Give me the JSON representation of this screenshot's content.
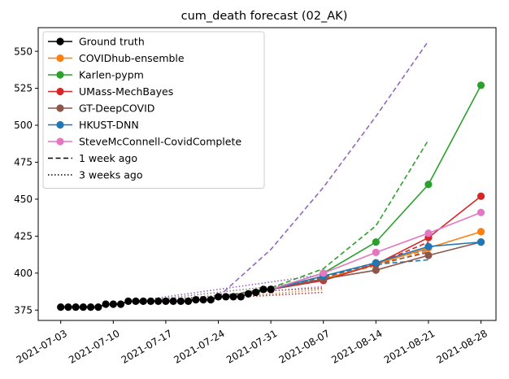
{
  "chart_data": {
    "type": "line",
    "title": "cum_death forecast (02_AK)",
    "xlabel": "",
    "ylabel": "",
    "xlim": [
      "2021-06-30",
      "2021-08-30"
    ],
    "ylim": [
      368,
      566
    ],
    "x_ticks": [
      "2021-07-03",
      "2021-07-10",
      "2021-07-17",
      "2021-07-24",
      "2021-07-31",
      "2021-08-07",
      "2021-08-14",
      "2021-08-21",
      "2021-08-28"
    ],
    "y_ticks": [
      375,
      400,
      425,
      450,
      475,
      500,
      525,
      550
    ],
    "grid": false,
    "legend_position": "top-left",
    "legend": [
      {
        "label": "Ground truth",
        "color": "#000000",
        "style": "solid",
        "marker": true
      },
      {
        "label": "COVIDhub-ensemble",
        "color": "#ff7f0e",
        "style": "solid",
        "marker": true
      },
      {
        "label": "Karlen-pypm",
        "color": "#2ca02c",
        "style": "solid",
        "marker": true
      },
      {
        "label": "UMass-MechBayes",
        "color": "#d62728",
        "style": "solid",
        "marker": true
      },
      {
        "label": "GT-DeepCOVID",
        "color": "#8c564b",
        "style": "solid",
        "marker": true
      },
      {
        "label": "HKUST-DNN",
        "color": "#1f77b4",
        "style": "solid",
        "marker": true
      },
      {
        "label": "SteveMcConnell-CovidComplete",
        "color": "#e377c2",
        "style": "solid",
        "marker": true
      },
      {
        "label": "1 week ago",
        "color": "#000000",
        "style": "dashed",
        "marker": false
      },
      {
        "label": "3 weeks ago",
        "color": "#000000",
        "style": "dotted",
        "marker": false
      }
    ],
    "series": [
      {
        "name": "Ground truth",
        "color": "#000000",
        "style": "solid",
        "marker": true,
        "x": [
          "2021-07-03",
          "2021-07-04",
          "2021-07-05",
          "2021-07-06",
          "2021-07-07",
          "2021-07-08",
          "2021-07-09",
          "2021-07-10",
          "2021-07-11",
          "2021-07-12",
          "2021-07-13",
          "2021-07-14",
          "2021-07-15",
          "2021-07-16",
          "2021-07-17",
          "2021-07-18",
          "2021-07-19",
          "2021-07-20",
          "2021-07-21",
          "2021-07-22",
          "2021-07-23",
          "2021-07-24",
          "2021-07-25",
          "2021-07-26",
          "2021-07-27",
          "2021-07-28",
          "2021-07-29",
          "2021-07-30",
          "2021-07-31"
        ],
        "y": [
          377,
          377,
          377,
          377,
          377,
          377,
          379,
          379,
          379,
          381,
          381,
          381,
          381,
          381,
          381,
          381,
          381,
          381,
          382,
          382,
          382,
          384,
          384,
          384,
          384,
          386,
          387,
          389,
          389
        ]
      },
      {
        "name": "COVIDhub-ensemble",
        "color": "#ff7f0e",
        "style": "solid",
        "marker": true,
        "x": [
          "2021-07-31",
          "2021-08-07",
          "2021-08-14",
          "2021-08-21",
          "2021-08-28"
        ],
        "y": [
          389,
          396,
          406,
          417,
          428
        ]
      },
      {
        "name": "Karlen-pypm",
        "color": "#2ca02c",
        "style": "solid",
        "marker": true,
        "x": [
          "2021-07-31",
          "2021-08-07",
          "2021-08-14",
          "2021-08-21",
          "2021-08-28"
        ],
        "y": [
          389,
          400,
          421,
          460,
          527
        ]
      },
      {
        "name": "UMass-MechBayes",
        "color": "#d62728",
        "style": "solid",
        "marker": true,
        "x": [
          "2021-07-31",
          "2021-08-07",
          "2021-08-14",
          "2021-08-21",
          "2021-08-28"
        ],
        "y": [
          389,
          395,
          406,
          424,
          452
        ]
      },
      {
        "name": "GT-DeepCOVID",
        "color": "#8c564b",
        "style": "solid",
        "marker": true,
        "x": [
          "2021-07-31",
          "2021-08-07",
          "2021-08-14",
          "2021-08-21",
          "2021-08-28"
        ],
        "y": [
          389,
          396,
          402,
          412,
          421
        ]
      },
      {
        "name": "HKUST-DNN",
        "color": "#1f77b4",
        "style": "solid",
        "marker": true,
        "x": [
          "2021-07-31",
          "2021-08-07",
          "2021-08-14",
          "2021-08-21",
          "2021-08-28"
        ],
        "y": [
          389,
          398,
          407,
          418,
          421
        ]
      },
      {
        "name": "SteveMcConnell-CovidComplete",
        "color": "#e377c2",
        "style": "solid",
        "marker": true,
        "x": [
          "2021-07-31",
          "2021-08-07",
          "2021-08-14",
          "2021-08-21",
          "2021-08-28"
        ],
        "y": [
          389,
          400,
          414,
          427,
          441
        ]
      },
      {
        "color": "#9467bd",
        "style": "dashed",
        "marker": false,
        "x": [
          "2021-07-24",
          "2021-07-31",
          "2021-08-07",
          "2021-08-14",
          "2021-08-21"
        ],
        "y": [
          384,
          416,
          458,
          506,
          557
        ]
      },
      {
        "color": "#2ca02c",
        "style": "dashed",
        "marker": false,
        "x": [
          "2021-07-24",
          "2021-07-31",
          "2021-08-07",
          "2021-08-14",
          "2021-08-21"
        ],
        "y": [
          384,
          390,
          403,
          432,
          490
        ]
      },
      {
        "color": "#ff7f0e",
        "style": "dashed",
        "marker": false,
        "x": [
          "2021-07-24",
          "2021-07-31",
          "2021-08-07",
          "2021-08-14",
          "2021-08-21"
        ],
        "y": [
          384,
          389,
          397,
          405,
          415
        ]
      },
      {
        "color": "#d62728",
        "style": "dashed",
        "marker": false,
        "x": [
          "2021-07-24",
          "2021-07-31",
          "2021-08-07",
          "2021-08-14",
          "2021-08-21"
        ],
        "y": [
          384,
          389,
          397,
          406,
          421
        ]
      },
      {
        "color": "#8c564b",
        "style": "dashed",
        "marker": false,
        "x": [
          "2021-07-24",
          "2021-07-31",
          "2021-08-07",
          "2021-08-14",
          "2021-08-21"
        ],
        "y": [
          384,
          389,
          397,
          406,
          414
        ]
      },
      {
        "color": "#1f77b4",
        "style": "dashed",
        "marker": false,
        "x": [
          "2021-07-24",
          "2021-07-31",
          "2021-08-07",
          "2021-08-14",
          "2021-08-21"
        ],
        "y": [
          384,
          389,
          398,
          406,
          409
        ]
      },
      {
        "color": "#7f7f7f",
        "style": "dashed",
        "marker": false,
        "x": [
          "2021-07-24",
          "2021-07-31",
          "2021-08-07",
          "2021-08-14",
          "2021-08-21"
        ],
        "y": [
          384,
          389,
          398,
          407,
          416
        ]
      },
      {
        "color": "#9467bd",
        "style": "dotted",
        "marker": false,
        "x": [
          "2021-07-10",
          "2021-07-17",
          "2021-07-24",
          "2021-07-31",
          "2021-08-07"
        ],
        "y": [
          379,
          384,
          389,
          394,
          399
        ]
      },
      {
        "color": "#7f7f7f",
        "style": "dotted",
        "marker": false,
        "x": [
          "2021-07-10",
          "2021-07-17",
          "2021-07-24",
          "2021-07-31",
          "2021-08-07"
        ],
        "y": [
          379,
          383,
          387,
          391,
          396
        ]
      },
      {
        "color": "#e377c2",
        "style": "dotted",
        "marker": false,
        "x": [
          "2021-07-10",
          "2021-07-17",
          "2021-07-24",
          "2021-07-31",
          "2021-08-07"
        ],
        "y": [
          379,
          382,
          385,
          388,
          391
        ]
      },
      {
        "color": "#d62728",
        "style": "dotted",
        "marker": false,
        "x": [
          "2021-07-10",
          "2021-07-17",
          "2021-07-24",
          "2021-07-31",
          "2021-08-07"
        ],
        "y": [
          379,
          381,
          383,
          385,
          387
        ]
      },
      {
        "color": "#ff7f0e",
        "style": "dotted",
        "marker": false,
        "x": [
          "2021-07-10",
          "2021-07-17",
          "2021-07-24",
          "2021-07-31",
          "2021-08-07"
        ],
        "y": [
          379,
          381,
          384,
          386,
          389
        ]
      },
      {
        "color": "#8c564b",
        "style": "dotted",
        "marker": false,
        "x": [
          "2021-07-10",
          "2021-07-17",
          "2021-07-24",
          "2021-07-31",
          "2021-08-07"
        ],
        "y": [
          379,
          382,
          385,
          388,
          390
        ]
      }
    ]
  }
}
